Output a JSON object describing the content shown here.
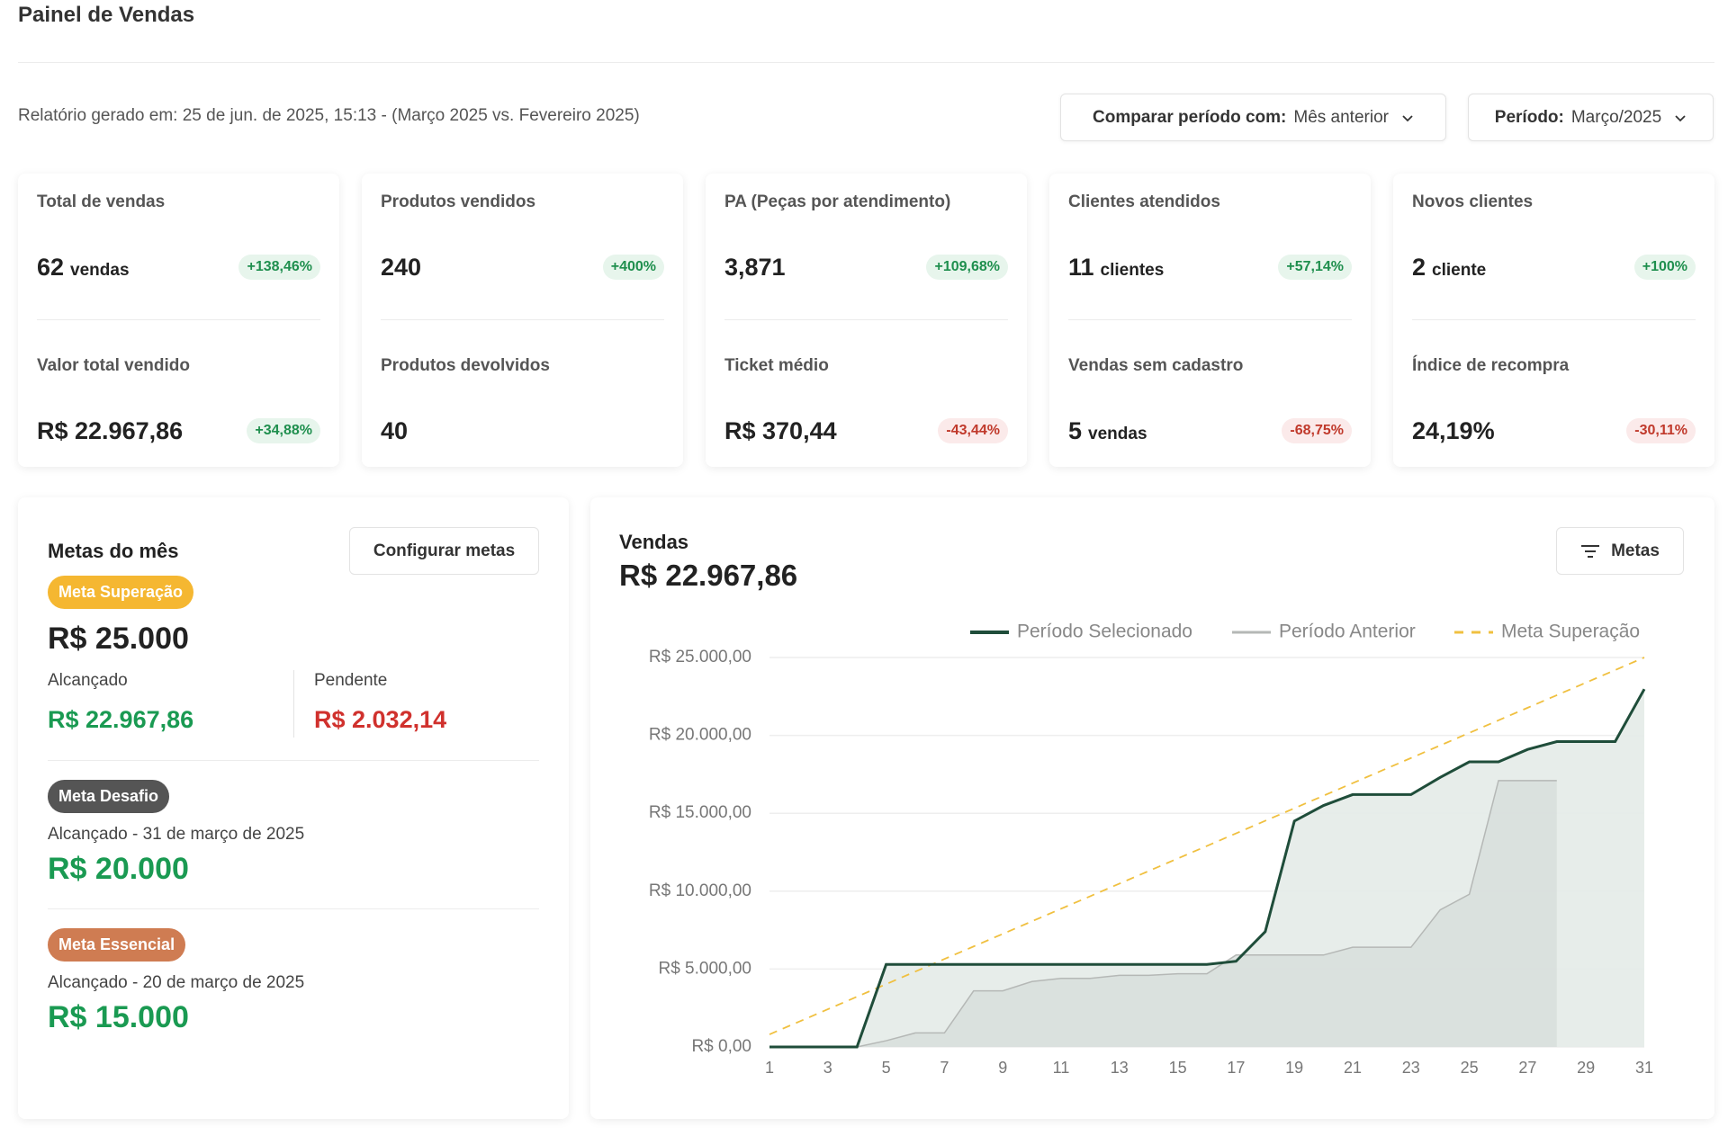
{
  "header": {
    "title": "Painel de Vendas"
  },
  "report": "Relatório gerado em: 25 de jun. de 2025, 15:13 - (Março 2025 vs. Fevereiro 2025)",
  "filters": [
    {
      "label": "Comparar período com:",
      "value": "Mês anterior"
    },
    {
      "label": "Período:",
      "value": "Março/2025"
    }
  ],
  "kpis": [
    [
      {
        "label": "Total de vendas",
        "value": "62",
        "unit": "vendas",
        "change": "+138,46%"
      },
      {
        "label": "Valor total vendido",
        "value": "R$ 22.967,86",
        "change": "+34,88%"
      }
    ],
    [
      {
        "label": "Produtos vendidos",
        "value": "240",
        "change": "+400%"
      },
      {
        "label": "Produtos devolvidos",
        "value": "40"
      }
    ],
    [
      {
        "label": "PA (Peças por atendimento)",
        "value": "3,871",
        "change": "+109,68%"
      },
      {
        "label": "Ticket médio",
        "value": "R$ 370,44",
        "change": "-43,44%"
      }
    ],
    [
      {
        "label": "Clientes atendidos",
        "value": "11",
        "unit": "clientes",
        "change": "+57,14%"
      },
      {
        "label": "Vendas sem cadastro",
        "value": "5",
        "unit": "vendas",
        "change": "-68,75%"
      }
    ],
    [
      {
        "label": "Novos clientes",
        "value": "2",
        "unit": "cliente",
        "change": "+100%"
      },
      {
        "label": "Índice de recompra",
        "value": "24,19%",
        "change": "-30,11%"
      }
    ]
  ],
  "goals": {
    "title": "Metas do mês",
    "button": "Configurar metas",
    "items": [
      {
        "badge": "Meta Superação",
        "color": "#f5b731",
        "value": "R$ 25.000",
        "achieved_label": "Alcançado",
        "achieved": "R$ 22.967,86",
        "pending_label": "Pendente",
        "pending": "R$ 2.032,14"
      },
      {
        "badge": "Meta Desafio",
        "color": "#555555",
        "note": "Alcançado - 31 de março de 2025",
        "value": "R$ 20.000"
      },
      {
        "badge": "Meta Essencial",
        "color": "#cf7c52",
        "note": "Alcançado - 20 de março de 2025",
        "value": "R$ 15.000"
      }
    ]
  },
  "chart_data": {
    "type": "line",
    "title": "Vendas",
    "subtitle": "R$ 22.967,86",
    "button": "Metas",
    "x": [
      1,
      2,
      3,
      4,
      5,
      6,
      7,
      8,
      9,
      10,
      11,
      12,
      13,
      14,
      15,
      16,
      17,
      18,
      19,
      20,
      21,
      22,
      23,
      24,
      25,
      26,
      27,
      28,
      29,
      30,
      31
    ],
    "xlim": [
      1,
      31
    ],
    "xticks": [
      1,
      3,
      5,
      7,
      9,
      11,
      13,
      15,
      17,
      19,
      21,
      23,
      25,
      27,
      29,
      31
    ],
    "ylim": [
      0,
      25000
    ],
    "yticks": [
      {
        "value": 0,
        "label": "R$ 0,00"
      },
      {
        "value": 5000,
        "label": "R$ 5.000,00"
      },
      {
        "value": 10000,
        "label": "R$ 10.000,00"
      },
      {
        "value": 15000,
        "label": "R$ 15.000,00"
      },
      {
        "value": 20000,
        "label": "R$ 20.000,00"
      },
      {
        "value": 25000,
        "label": "R$ 25.000,00"
      }
    ],
    "grid": true,
    "series": [
      {
        "name": "Período Selecionado",
        "color": "#1f4d3a",
        "area_color": "#e4ebe8",
        "values": [
          0,
          0,
          0,
          0,
          5300,
          5300,
          5300,
          5300,
          5300,
          5300,
          5300,
          5300,
          5300,
          5300,
          5300,
          5300,
          5500,
          7400,
          14500,
          15500,
          16200,
          16200,
          16200,
          17300,
          18300,
          18300,
          19100,
          19600,
          19600,
          19600,
          22967.86
        ]
      },
      {
        "name": "Período Anterior",
        "color": "#b5b8b6",
        "area_color": "#d6dcd9",
        "values": [
          0,
          0,
          0,
          0,
          400,
          900,
          900,
          3600,
          3600,
          4200,
          4400,
          4400,
          4600,
          4600,
          4700,
          4700,
          5900,
          5900,
          5900,
          5900,
          6400,
          6400,
          6400,
          8800,
          9800,
          17100,
          17100,
          17100,
          null,
          null,
          null
        ]
      },
      {
        "name": "Meta Superação",
        "color": "#f0c040",
        "style": "dashed",
        "values": [
          806,
          1613,
          2419,
          3226,
          4032,
          4839,
          5645,
          6452,
          7258,
          8065,
          8871,
          9677,
          10484,
          11290,
          12097,
          12903,
          13710,
          14516,
          15323,
          16129,
          16935,
          17742,
          18548,
          19355,
          20161,
          20968,
          21774,
          22581,
          23387,
          24194,
          25000
        ]
      }
    ]
  }
}
